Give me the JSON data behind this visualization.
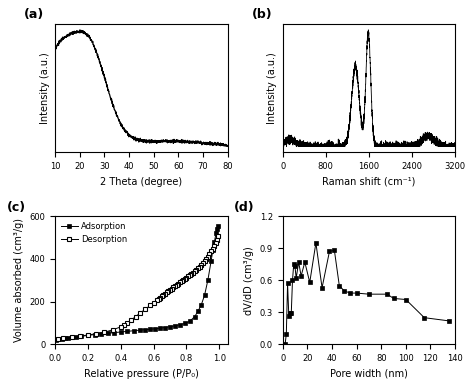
{
  "panel_a": {
    "label": "(a)",
    "xlabel": "2 Theta (degree)",
    "ylabel": "Intensity (a.u.)",
    "xlim": [
      10,
      80
    ],
    "xticks": [
      10,
      20,
      30,
      40,
      50,
      60,
      70,
      80
    ]
  },
  "panel_b": {
    "label": "(b)",
    "xlabel": "Raman shift (cm⁻¹)",
    "ylabel": "Intensity (a.u.)",
    "xlim": [
      0,
      3200
    ],
    "xticks": [
      0,
      800,
      1600,
      2400,
      3200
    ]
  },
  "panel_c": {
    "label": "(c)",
    "xlabel": "Relative pressure (P/P₀)",
    "ylabel": "Volume absorbed (cm³/g)",
    "xlim": [
      0.0,
      1.05
    ],
    "ylim": [
      0,
      600
    ],
    "xticks": [
      0.0,
      0.2,
      0.4,
      0.6,
      0.8,
      1.0
    ],
    "yticks": [
      0,
      200,
      400,
      600
    ],
    "adsorption_x": [
      0.005,
      0.02,
      0.04,
      0.06,
      0.08,
      0.1,
      0.13,
      0.16,
      0.2,
      0.24,
      0.28,
      0.32,
      0.36,
      0.4,
      0.44,
      0.48,
      0.52,
      0.55,
      0.58,
      0.61,
      0.64,
      0.67,
      0.7,
      0.73,
      0.76,
      0.79,
      0.82,
      0.85,
      0.87,
      0.89,
      0.91,
      0.93,
      0.95,
      0.96,
      0.97,
      0.98,
      0.985,
      0.99
    ],
    "adsorption_y": [
      20,
      24,
      27,
      29,
      31,
      33,
      36,
      38,
      42,
      46,
      49,
      52,
      55,
      58,
      61,
      64,
      67,
      69,
      71,
      73,
      76,
      79,
      83,
      87,
      92,
      98,
      108,
      130,
      155,
      185,
      230,
      300,
      390,
      440,
      480,
      520,
      540,
      555
    ],
    "desorption_x": [
      0.99,
      0.985,
      0.98,
      0.97,
      0.96,
      0.95,
      0.94,
      0.93,
      0.92,
      0.91,
      0.9,
      0.89,
      0.88,
      0.87,
      0.86,
      0.85,
      0.84,
      0.83,
      0.82,
      0.81,
      0.8,
      0.79,
      0.78,
      0.77,
      0.76,
      0.75,
      0.74,
      0.73,
      0.72,
      0.71,
      0.7,
      0.69,
      0.68,
      0.67,
      0.66,
      0.65,
      0.64,
      0.63,
      0.62,
      0.6,
      0.58,
      0.55,
      0.52,
      0.49,
      0.46,
      0.44,
      0.42,
      0.4,
      0.35,
      0.3,
      0.25,
      0.2,
      0.15,
      0.1,
      0.05,
      0.02
    ],
    "desorption_y": [
      505,
      490,
      475,
      462,
      448,
      435,
      422,
      410,
      400,
      390,
      380,
      372,
      364,
      356,
      349,
      342,
      336,
      330,
      324,
      318,
      312,
      307,
      301,
      295,
      290,
      284,
      278,
      272,
      267,
      261,
      255,
      249,
      243,
      237,
      231,
      225,
      219,
      213,
      207,
      195,
      183,
      165,
      148,
      130,
      112,
      100,
      90,
      82,
      68,
      57,
      50,
      44,
      39,
      35,
      30,
      26
    ],
    "legend_adsorption": "Adsorption",
    "legend_desorption": "Desorption"
  },
  "panel_d": {
    "label": "(d)",
    "xlabel": "Pore width (nm)",
    "ylabel": "dV/dD (cm³/g)",
    "xlim": [
      0,
      140
    ],
    "ylim": [
      0,
      1.2
    ],
    "xticks": [
      0,
      20,
      40,
      60,
      80,
      100,
      120,
      140
    ],
    "yticks": [
      0.0,
      0.3,
      0.6,
      0.9,
      1.2
    ],
    "x": [
      2,
      3,
      4,
      5,
      6,
      7,
      8,
      9,
      10,
      11,
      13,
      15,
      18,
      22,
      27,
      32,
      38,
      42,
      46,
      50,
      55,
      60,
      70,
      85,
      90,
      100,
      115,
      135
    ],
    "y": [
      0.0,
      0.1,
      0.57,
      0.27,
      0.29,
      0.29,
      0.6,
      0.75,
      0.73,
      0.62,
      0.77,
      0.64,
      0.77,
      0.58,
      0.95,
      0.53,
      0.87,
      0.88,
      0.55,
      0.5,
      0.48,
      0.48,
      0.47,
      0.47,
      0.43,
      0.42,
      0.25,
      0.22
    ]
  }
}
